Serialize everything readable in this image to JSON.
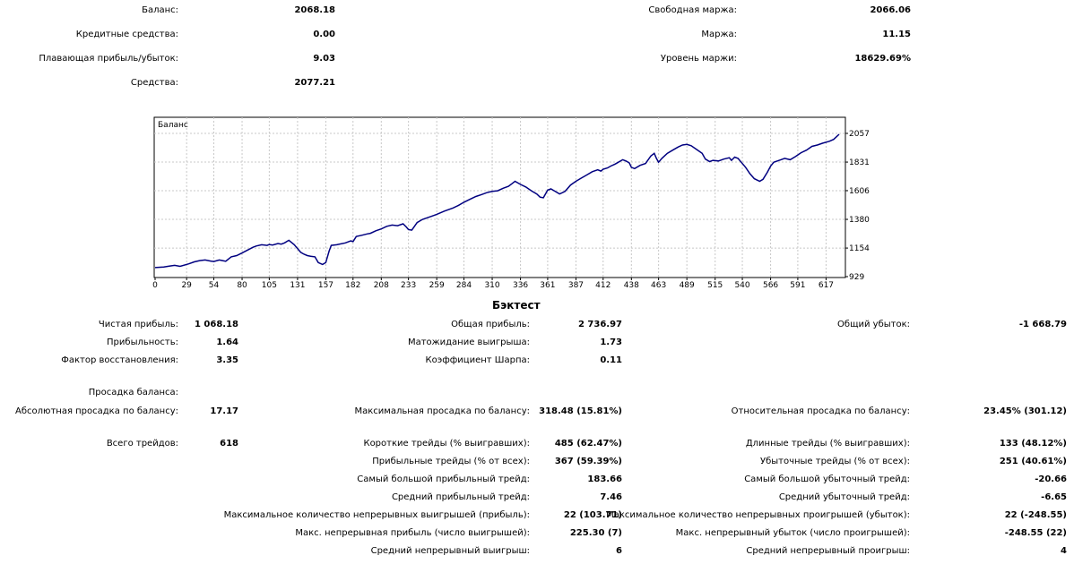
{
  "account": {
    "balance_label": "Баланс:",
    "balance": "2068.18",
    "credit_label": "Кредитные средства:",
    "credit": "0.00",
    "floating_label": "Плавающая прибыль/убыток:",
    "floating": "9.03",
    "equity_label": "Средства:",
    "equity": "2077.21",
    "free_margin_label": "Свободная маржа:",
    "free_margin": "2066.06",
    "margin_label": "Маржа:",
    "margin": "11.15",
    "margin_level_label": "Уровень маржи:",
    "margin_level": "18629.69%"
  },
  "chart_data": {
    "type": "line",
    "title": "Баланс",
    "x_ticks": [
      "0",
      "29",
      "54",
      "80",
      "105",
      "131",
      "157",
      "182",
      "208",
      "233",
      "259",
      "284",
      "310",
      "336",
      "361",
      "387",
      "412",
      "438",
      "463",
      "489",
      "515",
      "540",
      "566",
      "591",
      "617"
    ],
    "y_ticks": [
      "2057",
      "1831",
      "1606",
      "1380",
      "1154",
      "929"
    ],
    "ylim": [
      929,
      2057
    ],
    "xlim": [
      0,
      629
    ],
    "grid": true,
    "line_color": "#000080",
    "series": [
      {
        "x": [
          0,
          8,
          13,
          18,
          23,
          31,
          36,
          41,
          46,
          51,
          54,
          59,
          62,
          65,
          70,
          75,
          80,
          90,
          93,
          98,
          103,
          105,
          108,
          113,
          116,
          119,
          123,
          128,
          131,
          134,
          137,
          140,
          143,
          147,
          150,
          154,
          157,
          160,
          162,
          167,
          175,
          180,
          182,
          185,
          190,
          195,
          198,
          203,
          208,
          213,
          218,
          223,
          228,
          231,
          233,
          236,
          241,
          246,
          251,
          256,
          259,
          266,
          274,
          279,
          284,
          290,
          295,
          300,
          305,
          310,
          315,
          320,
          325,
          328,
          331,
          333,
          336,
          341,
          346,
          351,
          354,
          357,
          361,
          364,
          367,
          372,
          377,
          382,
          387,
          392,
          397,
          402,
          407,
          410,
          412,
          416,
          419,
          423,
          426,
          430,
          433,
          436,
          438,
          441,
          446,
          451,
          456,
          459,
          461,
          463,
          466,
          471,
          476,
          481,
          485,
          489,
          493,
          498,
          503,
          506,
          510,
          513,
          518,
          523,
          528,
          530,
          533,
          536,
          539,
          543,
          547,
          551,
          556,
          559,
          563,
          566,
          569,
          574,
          579,
          584,
          589,
          594,
          599,
          604,
          609,
          614,
          620,
          624,
          629
        ],
        "y": [
          1000,
          1005,
          1012,
          1018,
          1010,
          1030,
          1045,
          1055,
          1060,
          1052,
          1048,
          1060,
          1055,
          1050,
          1085,
          1095,
          1115,
          1160,
          1170,
          1180,
          1175,
          1182,
          1178,
          1190,
          1185,
          1195,
          1215,
          1180,
          1150,
          1120,
          1105,
          1095,
          1090,
          1085,
          1040,
          1025,
          1040,
          1130,
          1175,
          1180,
          1195,
          1210,
          1205,
          1245,
          1255,
          1265,
          1270,
          1290,
          1305,
          1325,
          1335,
          1330,
          1345,
          1320,
          1300,
          1295,
          1355,
          1380,
          1395,
          1410,
          1420,
          1445,
          1470,
          1490,
          1515,
          1540,
          1560,
          1575,
          1590,
          1600,
          1605,
          1625,
          1640,
          1660,
          1680,
          1670,
          1655,
          1635,
          1605,
          1580,
          1555,
          1550,
          1610,
          1620,
          1605,
          1580,
          1600,
          1650,
          1680,
          1705,
          1730,
          1755,
          1770,
          1760,
          1775,
          1785,
          1800,
          1815,
          1830,
          1850,
          1840,
          1825,
          1790,
          1780,
          1805,
          1820,
          1880,
          1900,
          1860,
          1830,
          1860,
          1900,
          1925,
          1950,
          1965,
          1970,
          1960,
          1930,
          1900,
          1855,
          1835,
          1845,
          1840,
          1855,
          1865,
          1845,
          1870,
          1860,
          1830,
          1790,
          1740,
          1700,
          1680,
          1695,
          1750,
          1800,
          1830,
          1845,
          1860,
          1850,
          1875,
          1905,
          1925,
          1955,
          1965,
          1980,
          1995,
          2010,
          2050
        ]
      }
    ]
  },
  "backtest": {
    "title": "Бэктест",
    "net_profit_label": "Чистая прибыль:",
    "net_profit": "1 068.18",
    "gross_profit_label": "Общая прибыль:",
    "gross_profit": "2 736.97",
    "gross_loss_label": "Общий убыток:",
    "gross_loss": "-1 668.79",
    "profit_factor_label": "Прибыльность:",
    "profit_factor": "1.64",
    "expected_payoff_label": "Матожидание выигрыша:",
    "expected_payoff": "1.73",
    "recovery_factor_label": "Фактор восстановления:",
    "recovery_factor": "3.35",
    "sharpe_label": "Коэффициент Шарпа:",
    "sharpe": "0.11",
    "drawdown_label": "Просадка баланса:",
    "abs_dd_label": "Абсолютная просадка по балансу:",
    "abs_dd": "17.17",
    "max_dd_label": "Максимальная просадка по балансу:",
    "max_dd": "318.48 (15.81%)",
    "rel_dd_label": "Относительная просадка по балансу:",
    "rel_dd": "23.45% (301.12)",
    "total_trades_label": "Всего трейдов:",
    "total_trades": "618",
    "short_label": "Короткие трейды (% выигравших):",
    "short": "485 (62.47%)",
    "long_label": "Длинные трейды (% выигравших):",
    "long": "133 (48.12%)",
    "profit_trades_label": "Прибыльные трейды (% от всех):",
    "profit_trades": "367 (59.39%)",
    "loss_trades_label": "Убыточные трейды (% от всех):",
    "loss_trades": "251 (40.61%)",
    "largest_profit_label": "Самый большой прибыльный трейд:",
    "largest_profit": "183.66",
    "largest_loss_label": "Самый большой убыточный трейд:",
    "largest_loss": "-20.66",
    "avg_profit_label": "Средний прибыльный трейд:",
    "avg_profit": "7.46",
    "avg_loss_label": "Средний убыточный трейд:",
    "avg_loss": "-6.65",
    "max_cons_wins_label": "Максимальное количество непрерывных выигрышей (прибыль):",
    "max_cons_wins": "22 (103.71)",
    "max_cons_losses_label": "Максимальное количество непрерывных проигрышей (убыток):",
    "max_cons_losses": "22 (-248.55)",
    "max_cons_profit_label": "Макс. непрерывная прибыль (число выигрышей):",
    "max_cons_profit": "225.30 (7)",
    "max_cons_loss_label": "Макс. непрерывный убыток (число проигрышей):",
    "max_cons_loss": "-248.55 (22)",
    "avg_cons_wins_label": "Средний непрерывный выигрыш:",
    "avg_cons_wins": "6",
    "avg_cons_losses_label": "Средний непрерывный проигрыш:",
    "avg_cons_losses": "4"
  }
}
